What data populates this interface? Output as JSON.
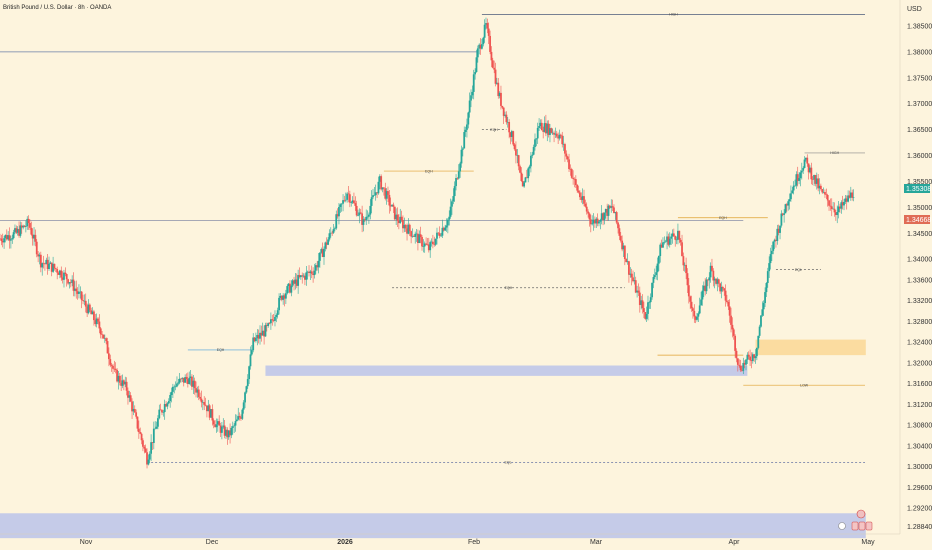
{
  "header": {
    "title": "British Pound / U.S. Dollar · 8h · OANDA"
  },
  "price_axis": {
    "currency": "USD",
    "ticks": [
      "1.38500",
      "1.38000",
      "1.37500",
      "1.37000",
      "1.36500",
      "1.36000",
      "1.35500",
      "1.35000",
      "1.34500",
      "1.34000",
      "1.33600",
      "1.33200",
      "1.32800",
      "1.32400",
      "1.32000",
      "1.31600",
      "1.31200",
      "1.30800",
      "1.30400",
      "1.30000",
      "1.29600",
      "1.29200",
      "1.28840"
    ],
    "current_price_label": "1.35308",
    "secondary_price_label": "1.34668"
  },
  "time_axis": {
    "labels": [
      {
        "text": "Nov",
        "bold": false
      },
      {
        "text": "Dec",
        "bold": false
      },
      {
        "text": "2026",
        "bold": true
      },
      {
        "text": "Feb",
        "bold": false
      },
      {
        "text": "Mar",
        "bold": false
      },
      {
        "text": "Apr",
        "bold": false
      },
      {
        "text": "May",
        "bold": false
      }
    ]
  },
  "chart_data": {
    "type": "candlestick",
    "symbol": "GBPUSD",
    "timeframe": "8h",
    "ylim": [
      1.287,
      1.39
    ],
    "colors": {
      "up": "#26a69a",
      "down": "#ef5350",
      "background": "#fdf4dd"
    },
    "x_start_date": "2025-10-01",
    "x_end_date": "2026-05-01",
    "path": [
      [
        "2025-10-01",
        1.344
      ],
      [
        "2025-10-05",
        1.345
      ],
      [
        "2025-10-08",
        1.347
      ],
      [
        "2025-10-11",
        1.3395
      ],
      [
        "2025-10-15",
        1.338
      ],
      [
        "2025-10-18",
        1.336
      ],
      [
        "2025-10-22",
        1.331
      ],
      [
        "2025-10-26",
        1.326
      ],
      [
        "2025-10-29",
        1.318
      ],
      [
        "2025-11-01",
        1.315
      ],
      [
        "2025-11-04",
        1.307
      ],
      [
        "2025-11-06",
        1.3015
      ],
      [
        "2025-11-09",
        1.31
      ],
      [
        "2025-11-13",
        1.316
      ],
      [
        "2025-11-16",
        1.317
      ],
      [
        "2025-11-19",
        1.314
      ],
      [
        "2025-11-23",
        1.308
      ],
      [
        "2025-11-26",
        1.306
      ],
      [
        "2025-11-29",
        1.31
      ],
      [
        "2025-12-02",
        1.324
      ],
      [
        "2025-12-06",
        1.327
      ],
      [
        "2025-12-09",
        1.333
      ],
      [
        "2025-12-13",
        1.336
      ],
      [
        "2025-12-17",
        1.338
      ],
      [
        "2025-12-21",
        1.345
      ],
      [
        "2025-12-25",
        1.353
      ],
      [
        "2025-12-29",
        1.347
      ],
      [
        "2026-01-02",
        1.355
      ],
      [
        "2026-01-06",
        1.348
      ],
      [
        "2026-01-10",
        1.345
      ],
      [
        "2026-01-14",
        1.342
      ],
      [
        "2026-01-19",
        1.348
      ],
      [
        "2026-01-23",
        1.365
      ],
      [
        "2026-01-26",
        1.38
      ],
      [
        "2026-01-28",
        1.385
      ],
      [
        "2026-01-31",
        1.372
      ],
      [
        "2026-02-04",
        1.362
      ],
      [
        "2026-02-06",
        1.353
      ],
      [
        "2026-02-10",
        1.366
      ],
      [
        "2026-02-15",
        1.364
      ],
      [
        "2026-02-19",
        1.354
      ],
      [
        "2026-02-23",
        1.347
      ],
      [
        "2026-02-28",
        1.35
      ],
      [
        "2026-03-04",
        1.338
      ],
      [
        "2026-03-08",
        1.329
      ],
      [
        "2026-03-12",
        1.343
      ],
      [
        "2026-03-16",
        1.345
      ],
      [
        "2026-03-20",
        1.328
      ],
      [
        "2026-03-24",
        1.338
      ],
      [
        "2026-03-28",
        1.332
      ],
      [
        "2026-03-31",
        1.319
      ],
      [
        "2026-04-04",
        1.322
      ],
      [
        "2026-04-08",
        1.342
      ],
      [
        "2026-04-12",
        1.352
      ],
      [
        "2026-04-16",
        1.359
      ],
      [
        "2026-04-20",
        1.353
      ],
      [
        "2026-04-24",
        1.349
      ],
      [
        "2026-04-28",
        1.353
      ]
    ],
    "levels": [
      {
        "label": "HIGH",
        "price": 1.3872,
        "from": "2026-01-27",
        "to": "2026-05-01",
        "color": "#4a5a78",
        "style": "solid"
      },
      {
        "label": "",
        "price": 1.38,
        "from": "2025-10-01",
        "to": "2026-01-26",
        "color": "#6b7fa8",
        "style": "solid"
      },
      {
        "label": "",
        "price": 1.3475,
        "from": "2025-10-01",
        "to": "2026-04-01",
        "color": "#8a8fa8",
        "style": "solid"
      },
      {
        "label": "EQH",
        "price": 1.357,
        "from": "2026-01-03",
        "to": "2026-01-25",
        "color": "#e0a030",
        "style": "solid"
      },
      {
        "label": "EQH",
        "price": 1.365,
        "from": "2026-01-27",
        "to": "2026-02-02",
        "color": "#666",
        "style": "dashed"
      },
      {
        "label": "EQH",
        "price": 1.3345,
        "from": "2026-01-05",
        "to": "2026-03-03",
        "color": "#666",
        "style": "dashed"
      },
      {
        "label": "HIGH",
        "price": 1.3605,
        "from": "2026-04-16",
        "to": "2026-05-01",
        "color": "#888",
        "style": "solid"
      },
      {
        "label": "EQH",
        "price": 1.348,
        "from": "2026-03-16",
        "to": "2026-04-07",
        "color": "#e0a030",
        "style": "solid"
      },
      {
        "label": "EQL",
        "price": 1.338,
        "from": "2026-04-09",
        "to": "2026-04-20",
        "color": "#666",
        "style": "dashed"
      },
      {
        "label": "EQH",
        "price": 1.3225,
        "from": "2025-11-16",
        "to": "2025-12-02",
        "color": "#4a9fd8",
        "style": "solid"
      },
      {
        "label": "EQL",
        "price": 1.3008,
        "from": "2025-11-07",
        "to": "2026-05-01",
        "color": "#4a5a98",
        "style": "dashed"
      },
      {
        "label": "LOW",
        "price": 1.3157,
        "from": "2026-04-01",
        "to": "2026-05-01",
        "color": "#e0a030",
        "style": "solid"
      },
      {
        "label": "",
        "price": 1.3215,
        "from": "2026-03-11",
        "to": "2026-04-01",
        "color": "#e0a030",
        "style": "solid"
      }
    ],
    "zones": [
      {
        "from": "2025-12-05",
        "to": "2026-04-02",
        "top": 1.3195,
        "bottom": 1.3175,
        "color": "#c5cbe8"
      },
      {
        "from": "2026-04-04",
        "to": "2026-05-01",
        "top": 1.3245,
        "bottom": 1.3215,
        "color": "#fbdca0"
      },
      {
        "from": "2025-10-01",
        "to": "2026-05-01",
        "top": 1.291,
        "bottom": 1.2862,
        "color": "#c5cbe8"
      }
    ]
  }
}
